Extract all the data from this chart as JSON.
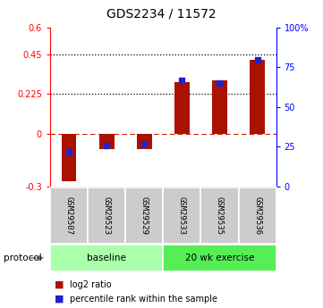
{
  "title": "GDS2234 / 11572",
  "samples": [
    "GSM29507",
    "GSM29523",
    "GSM29529",
    "GSM29533",
    "GSM29535",
    "GSM29536"
  ],
  "log2_ratio": [
    -0.27,
    -0.09,
    -0.09,
    0.29,
    0.3,
    0.42
  ],
  "percentile_rank": [
    22,
    26,
    27,
    67,
    65,
    80
  ],
  "groups": [
    {
      "label": "baseline",
      "start": 0,
      "end": 3,
      "color": "#aaffaa"
    },
    {
      "label": "20 wk exercise",
      "start": 3,
      "end": 6,
      "color": "#55ee55"
    }
  ],
  "bar_color": "#aa1100",
  "dot_color": "#2222cc",
  "left_ylim": [
    -0.3,
    0.6
  ],
  "right_ylim": [
    0,
    100
  ],
  "left_yticks": [
    -0.3,
    0,
    0.225,
    0.45,
    0.6
  ],
  "left_yticklabels": [
    "-0.3",
    "0",
    "0.225",
    "0.45",
    "0.6"
  ],
  "right_yticks": [
    0,
    25,
    50,
    75,
    100
  ],
  "right_yticklabels": [
    "0",
    "25",
    "50",
    "75",
    "100%"
  ],
  "hlines": [
    0.225,
    0.45
  ],
  "zero_line": 0,
  "background_color": "#ffffff",
  "legend_items": [
    "log2 ratio",
    "percentile rank within the sample"
  ],
  "protocol_label": "protocol"
}
